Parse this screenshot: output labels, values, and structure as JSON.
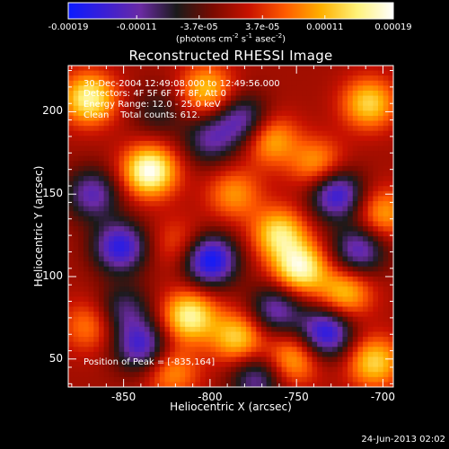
{
  "colorbar": {
    "tick_labels": [
      "-0.00019",
      "-0.00011",
      "-3.7e-05",
      "3.7e-05",
      "0.00011",
      "0.00019"
    ],
    "tick_values": [
      -0.00019,
      -0.00011,
      -3.7e-05,
      3.7e-05,
      0.00011,
      0.00019
    ],
    "range": [
      -0.00019,
      0.00019
    ],
    "unit_prefix": "(photons cm",
    "unit_exp1": "-2",
    "unit_mid1": " s",
    "unit_exp2": "-1",
    "unit_mid2": " asec",
    "unit_exp3": "-2",
    "unit_suffix": ")",
    "colors": [
      "#0b1bff",
      "#3a1fd6",
      "#6a2aa3",
      "#1a1a1a",
      "#7a0a00",
      "#c81200",
      "#ff5a00",
      "#ffb000",
      "#fff27a",
      "#ffffff"
    ]
  },
  "chart_data": {
    "type": "heatmap",
    "title": "Reconstructed RHESSI Image",
    "xlabel": "Heliocentric X (arcsec)",
    "ylabel": "Heliocentric Y (arcsec)",
    "xlim": [
      -882,
      -694
    ],
    "ylim": [
      33,
      228
    ],
    "x_ticks": [
      -850,
      -800,
      -750,
      -700
    ],
    "x_tick_labels": [
      "-850",
      "-800",
      "-750",
      "-700"
    ],
    "y_ticks": [
      50,
      100,
      150,
      200
    ],
    "y_tick_labels": [
      "50",
      "100",
      "150",
      "200"
    ],
    "annotations": {
      "time_range": "30-Dec-2004 12:49:08.000 to 12:49:56.000",
      "detectors": "Detectors: 4F 5F 6F 7F 8F, Att 0",
      "energy_range": "Energy Range: 12.0 - 25.0 keV",
      "clean": "Clean    Total counts: 612.",
      "peak": "Position of Peak = [-835,164]"
    },
    "peak_position": [
      -835,
      164
    ],
    "total_counts": 612,
    "energy_range_kev": [
      12.0,
      25.0
    ],
    "hotspots": [
      {
        "x": -835,
        "y": 164,
        "value": 0.00019
      },
      {
        "x": -870,
        "y": 208,
        "value": 0.00016
      },
      {
        "x": -802,
        "y": 213,
        "value": 0.00012
      },
      {
        "x": -765,
        "y": 183,
        "value": 0.00011
      },
      {
        "x": -738,
        "y": 168,
        "value": 0.0001
      },
      {
        "x": -708,
        "y": 205,
        "value": 0.00013
      },
      {
        "x": -786,
        "y": 150,
        "value": 9e-05
      },
      {
        "x": -760,
        "y": 126,
        "value": 0.00014
      },
      {
        "x": -748,
        "y": 105,
        "value": 0.00017
      },
      {
        "x": -722,
        "y": 90,
        "value": 0.00012
      },
      {
        "x": -700,
        "y": 138,
        "value": 0.0001
      },
      {
        "x": -812,
        "y": 76,
        "value": 0.00016
      },
      {
        "x": -784,
        "y": 63,
        "value": 0.00013
      },
      {
        "x": -822,
        "y": 42,
        "value": 9e-05
      },
      {
        "x": -752,
        "y": 50,
        "value": 0.00011
      },
      {
        "x": -705,
        "y": 48,
        "value": 0.00013
      },
      {
        "x": -870,
        "y": 70,
        "value": 8e-05
      },
      {
        "x": -818,
        "y": 120,
        "value": 6e-05
      },
      {
        "x": -852,
        "y": 118,
        "value": -0.00016
      },
      {
        "x": -868,
        "y": 150,
        "value": -0.00012
      },
      {
        "x": -800,
        "y": 110,
        "value": -0.00019
      },
      {
        "x": -800,
        "y": 183,
        "value": -0.0001
      },
      {
        "x": -781,
        "y": 195,
        "value": -0.00012
      },
      {
        "x": -727,
        "y": 150,
        "value": -0.00016
      },
      {
        "x": -714,
        "y": 116,
        "value": -0.00013
      },
      {
        "x": -850,
        "y": 80,
        "value": -9e-05
      },
      {
        "x": -840,
        "y": 58,
        "value": -0.00014
      },
      {
        "x": -762,
        "y": 80,
        "value": -0.00012
      },
      {
        "x": -733,
        "y": 66,
        "value": -0.00017
      },
      {
        "x": -773,
        "y": 38,
        "value": -0.00011
      },
      {
        "x": -830,
        "y": 200,
        "value": -6e-05
      }
    ]
  },
  "footer": {
    "timestamp": "24-Jun-2013 02:02"
  }
}
